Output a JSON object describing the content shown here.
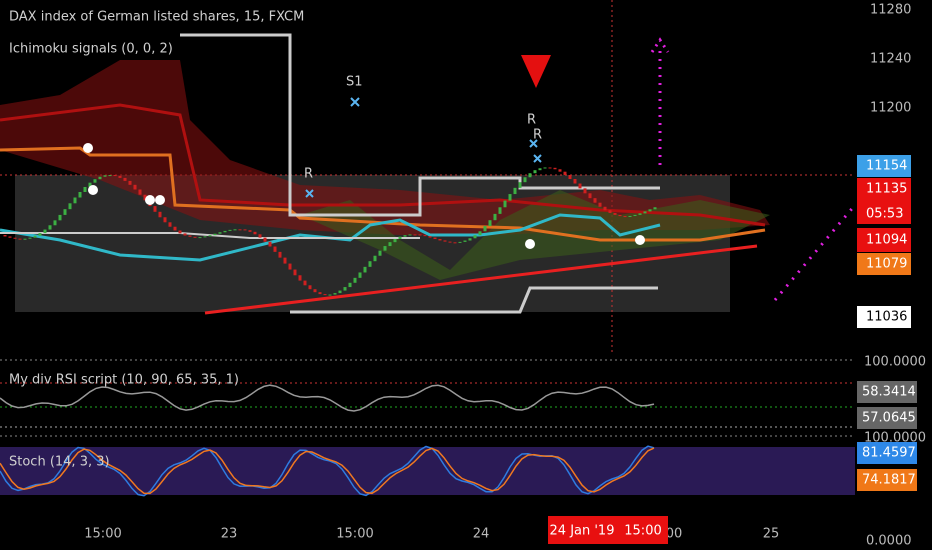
{
  "header": {
    "title": "DAX index of German listed shares, 15, FXCM",
    "indicator": "Ichimoku signals (0, 0, 2)"
  },
  "markers": [
    "S1",
    "R",
    "R",
    "R"
  ],
  "price_axis": {
    "labels": [
      "11280",
      "11240",
      "11200"
    ],
    "badges": [
      "11154",
      "11135",
      "05:53",
      "11094",
      "11079",
      "11036"
    ]
  },
  "rsi_panel": {
    "title": "My div RSI script (10, 90, 65, 35, 1)",
    "axis_labels": [
      "100.0000"
    ],
    "badges": [
      "58.3414",
      "57.0645"
    ]
  },
  "stoch_panel": {
    "title": "Stoch (14, 3, 3)",
    "axis_labels": [
      "100.0000",
      "0.0000"
    ],
    "badges": [
      "81.4597",
      "74.1817"
    ]
  },
  "time_axis": {
    "labels": [
      "15:00",
      "23",
      "15:00",
      "24",
      "00",
      "25"
    ],
    "cursor_date": "24 Jan '19",
    "cursor_time": "15:00"
  }
}
